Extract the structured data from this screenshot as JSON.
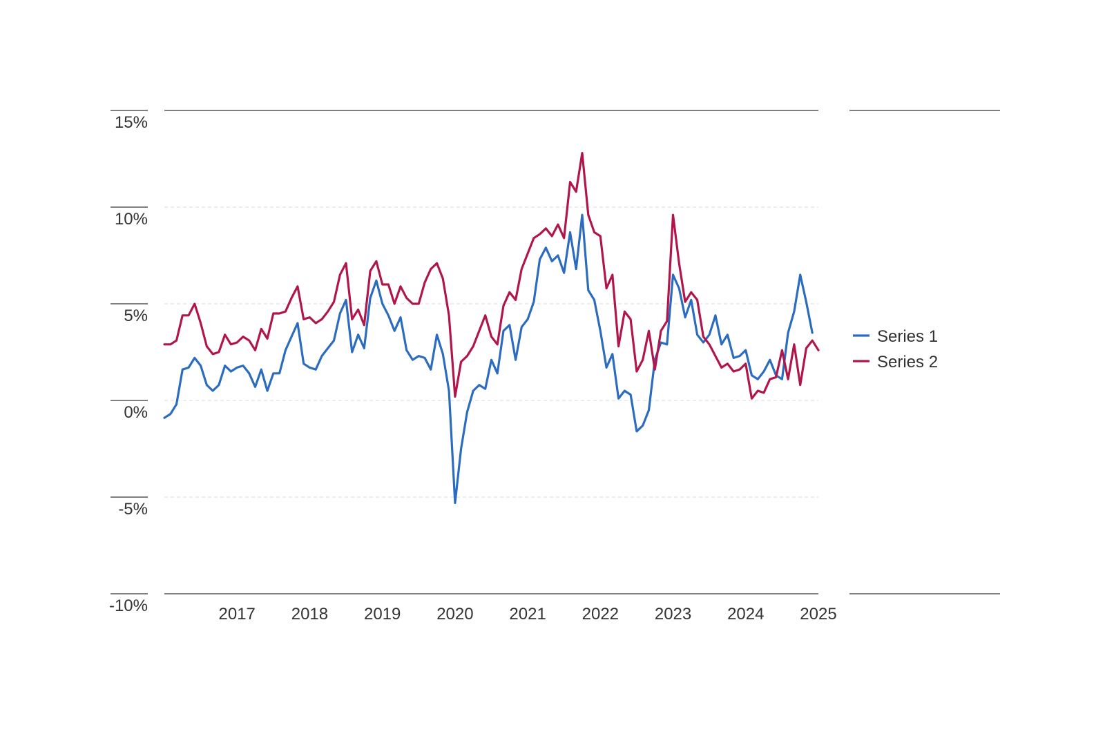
{
  "chart_data": {
    "type": "line",
    "x_ticks": [
      "2017",
      "2018",
      "2019",
      "2020",
      "2021",
      "2022",
      "2023",
      "2024",
      "2025"
    ],
    "y_ticks": [
      "15%",
      "10%",
      "5%",
      "0%",
      "-5%",
      "-10%"
    ],
    "y_tick_values": [
      15,
      10,
      5,
      0,
      -5,
      -10
    ],
    "ylim": [
      -10,
      15
    ],
    "xlim": [
      2016.0,
      2025.0
    ],
    "x_unit": "year",
    "y_unit": "%",
    "gridlines": "dashed horizontal at -5, 0, 5, 10",
    "legend_position": "right",
    "series": [
      {
        "name": "Series 1",
        "color": "#2c6cbf",
        "x_start": 2016.0,
        "x_step": 0.08333,
        "values": [
          -0.9,
          -0.7,
          -0.2,
          1.6,
          1.7,
          2.2,
          1.8,
          0.8,
          0.5,
          0.8,
          1.8,
          1.5,
          1.7,
          1.8,
          1.4,
          0.7,
          1.6,
          0.5,
          1.4,
          1.4,
          2.6,
          3.3,
          4.0,
          1.9,
          1.7,
          1.6,
          2.3,
          2.7,
          3.1,
          4.5,
          5.2,
          2.5,
          3.4,
          2.7,
          5.3,
          6.2,
          5.0,
          4.4,
          3.6,
          4.3,
          2.6,
          2.1,
          2.3,
          2.2,
          1.6,
          3.4,
          2.4,
          0.5,
          -5.3,
          -2.5,
          -0.6,
          0.5,
          0.8,
          0.6,
          2.1,
          1.4,
          3.6,
          3.9,
          2.1,
          3.8,
          4.2,
          5.1,
          7.3,
          7.9,
          7.2,
          7.5,
          6.6,
          8.7,
          6.8,
          9.6,
          5.7,
          5.2,
          3.6,
          1.7,
          2.4,
          0.1,
          0.5,
          0.3,
          -1.6,
          -1.3,
          -0.5,
          2.1,
          3.0,
          2.9,
          6.5,
          5.8,
          4.3,
          5.2,
          3.4,
          3.0,
          3.4,
          4.4,
          2.9,
          3.4,
          2.2,
          2.3,
          2.6,
          1.3,
          1.1,
          1.5,
          2.1,
          1.3,
          1.1,
          3.5,
          4.6,
          6.5,
          5.1,
          3.5
        ]
      },
      {
        "name": "Series 2",
        "color": "#b0164b",
        "x_start": 2016.0,
        "x_step": 0.08333,
        "values": [
          2.9,
          2.9,
          3.1,
          4.4,
          4.4,
          5.0,
          4.0,
          2.8,
          2.4,
          2.5,
          3.4,
          2.9,
          3.0,
          3.3,
          3.1,
          2.6,
          3.7,
          3.2,
          4.5,
          4.5,
          4.6,
          5.3,
          5.9,
          4.2,
          4.3,
          4.0,
          4.2,
          4.6,
          5.1,
          6.5,
          7.1,
          4.2,
          4.7,
          3.9,
          6.7,
          7.2,
          6.0,
          6.0,
          5.0,
          5.9,
          5.3,
          5.0,
          5.0,
          6.1,
          6.8,
          7.1,
          6.3,
          4.4,
          0.2,
          2.0,
          2.3,
          2.8,
          3.6,
          4.4,
          3.3,
          2.9,
          4.9,
          5.6,
          5.2,
          6.8,
          7.6,
          8.4,
          8.6,
          8.9,
          8.5,
          9.1,
          8.4,
          11.3,
          10.8,
          12.8,
          9.6,
          8.7,
          8.5,
          5.8,
          6.5,
          2.8,
          4.6,
          4.2,
          1.5,
          2.1,
          3.6,
          1.6,
          3.6,
          4.1,
          9.6,
          7.1,
          5.1,
          5.6,
          5.2,
          3.3,
          2.9,
          2.3,
          1.7,
          1.9,
          1.5,
          1.6,
          1.9,
          0.1,
          0.5,
          0.4,
          1.1,
          1.2,
          2.6,
          1.1,
          2.9,
          0.8,
          2.7,
          3.1,
          2.6
        ]
      }
    ]
  }
}
